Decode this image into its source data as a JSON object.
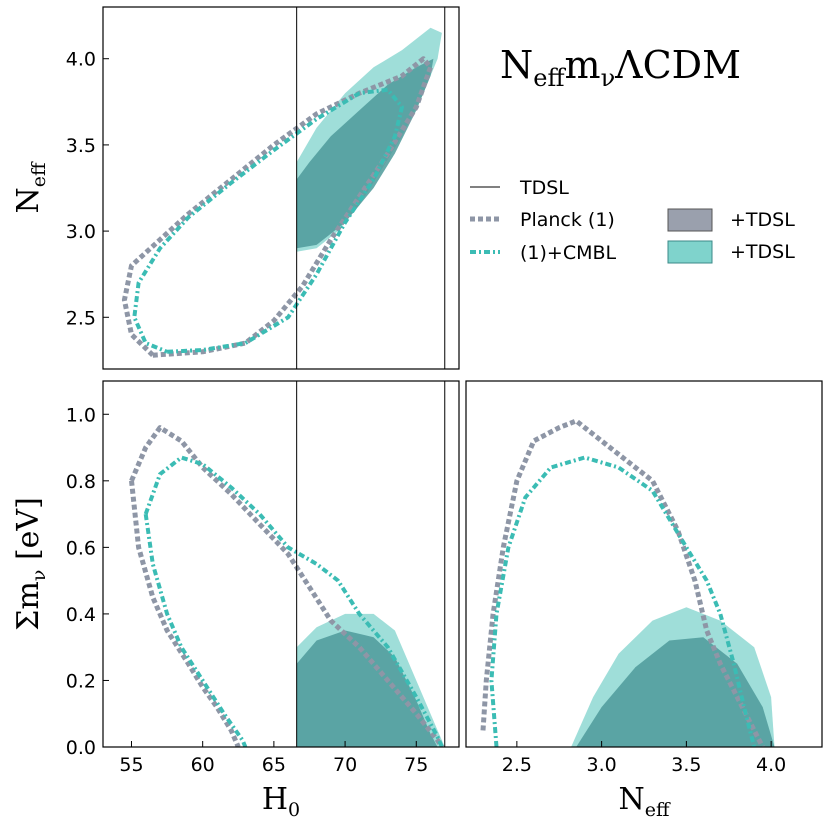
{
  "title": {
    "base": "N",
    "sub": "eff",
    "rest1": "m",
    "sub2": "ν",
    "rest2": "ΛCDM"
  },
  "colors": {
    "planck": "#8e96a6",
    "cmbl": "#3bbcb4",
    "fill_gray": "#9aa0ad",
    "fill_teal": "#7fd3cc",
    "fill_overlap": "#4d9a9a",
    "vline": "#000000"
  },
  "legend": {
    "tdsl_line": "TDSL",
    "planck": "Planck (1)",
    "cmbl": "(1)+CMBL",
    "fill_gray": "+TDSL",
    "fill_teal": "+TDSL"
  },
  "chart_data": [
    {
      "panel": "H0-Neff",
      "type": "scatter",
      "xlim": [
        53,
        78
      ],
      "ylim": [
        2.2,
        4.3
      ],
      "x_ticks": [],
      "y_ticks": [
        "2.5",
        "3.0",
        "3.5",
        "4.0"
      ],
      "ylabel": {
        "base": "N",
        "sub": "eff"
      },
      "xlabel": null,
      "vlines": [
        66.6,
        77.0
      ],
      "series": [
        {
          "name": "Planck (1)",
          "style": "dashed",
          "points": [
            [
              56.5,
              2.28
            ],
            [
              60,
              2.3
            ],
            [
              63,
              2.35
            ],
            [
              65,
              2.48
            ],
            [
              67,
              2.68
            ],
            [
              69,
              2.95
            ],
            [
              71,
              3.2
            ],
            [
              73,
              3.45
            ],
            [
              75,
              3.72
            ],
            [
              76,
              3.95
            ],
            [
              75.5,
              4.0
            ],
            [
              74,
              3.9
            ],
            [
              71,
              3.8
            ],
            [
              68,
              3.68
            ],
            [
              65,
              3.5
            ],
            [
              62,
              3.3
            ],
            [
              59,
              3.1
            ],
            [
              57,
              2.95
            ],
            [
              55,
              2.8
            ],
            [
              54.5,
              2.6
            ],
            [
              55,
              2.4
            ],
            [
              56.5,
              2.28
            ]
          ]
        },
        {
          "name": "(1)+CMBL",
          "style": "dashdot",
          "points": [
            [
              57.5,
              2.3
            ],
            [
              60,
              2.31
            ],
            [
              63,
              2.35
            ],
            [
              66,
              2.5
            ],
            [
              68,
              2.75
            ],
            [
              70,
              3.05
            ],
            [
              72,
              3.3
            ],
            [
              73.5,
              3.55
            ],
            [
              74,
              3.72
            ],
            [
              73,
              3.82
            ],
            [
              71,
              3.8
            ],
            [
              68,
              3.65
            ],
            [
              65,
              3.47
            ],
            [
              62,
              3.28
            ],
            [
              59,
              3.08
            ],
            [
              57,
              2.9
            ],
            [
              55.5,
              2.7
            ],
            [
              55.2,
              2.5
            ],
            [
              56,
              2.35
            ],
            [
              57.5,
              2.3
            ]
          ]
        }
      ],
      "fills": [
        {
          "name": "+TDSL",
          "color": "teal",
          "points": [
            [
              66.6,
              2.88
            ],
            [
              68,
              2.9
            ],
            [
              69.5,
              3.0
            ],
            [
              71,
              3.15
            ],
            [
              72.5,
              3.35
            ],
            [
              74,
              3.55
            ],
            [
              75.5,
              3.8
            ],
            [
              76.5,
              4.0
            ],
            [
              76.8,
              4.15
            ],
            [
              76,
              4.18
            ],
            [
              74,
              4.05
            ],
            [
              72,
              3.95
            ],
            [
              70,
              3.8
            ],
            [
              68,
              3.6
            ],
            [
              66.6,
              3.4
            ]
          ]
        },
        {
          "name": "+TDSL",
          "color": "overlap",
          "points": [
            [
              66.6,
              2.9
            ],
            [
              68,
              2.92
            ],
            [
              70,
              3.05
            ],
            [
              72,
              3.25
            ],
            [
              73.5,
              3.45
            ],
            [
              75,
              3.7
            ],
            [
              76,
              3.9
            ],
            [
              76.2,
              4.0
            ],
            [
              75,
              3.95
            ],
            [
              73,
              3.85
            ],
            [
              71,
              3.7
            ],
            [
              69,
              3.55
            ],
            [
              67.5,
              3.4
            ],
            [
              66.6,
              3.3
            ]
          ]
        }
      ]
    },
    {
      "panel": "H0-mnu",
      "type": "scatter",
      "xlim": [
        53,
        78
      ],
      "ylim": [
        0,
        1.1
      ],
      "x_ticks": [
        "55",
        "60",
        "65",
        "70",
        "75"
      ],
      "y_ticks": [
        "0.0",
        "0.2",
        "0.4",
        "0.6",
        "0.8",
        "1.0"
      ],
      "xlabel": {
        "base": "H",
        "sub": "0"
      },
      "ylabel": {
        "base": "Σm",
        "sub": "ν",
        "rest": " [eV]"
      },
      "vlines": [
        66.6,
        77.0
      ],
      "series": [
        {
          "name": "Planck (1)",
          "style": "dashed",
          "points": [
            [
              55,
              0.8
            ],
            [
              56,
              0.9
            ],
            [
              57,
              0.96
            ],
            [
              58.5,
              0.92
            ],
            [
              60,
              0.84
            ],
            [
              62,
              0.76
            ],
            [
              64,
              0.67
            ],
            [
              66,
              0.58
            ],
            [
              67.5,
              0.48
            ],
            [
              69,
              0.38
            ],
            [
              71,
              0.3
            ],
            [
              73,
              0.2
            ],
            [
              75,
              0.1
            ],
            [
              76.5,
              0.02
            ],
            [
              76.8,
              0.0
            ]
          ]
        },
        {
          "name": "Planck (1) lower",
          "style": "dashed",
          "points": [
            [
              55,
              0.8
            ],
            [
              55.5,
              0.6
            ],
            [
              56.5,
              0.45
            ],
            [
              57.5,
              0.35
            ],
            [
              59,
              0.25
            ],
            [
              60,
              0.18
            ],
            [
              61,
              0.12
            ],
            [
              62,
              0.05
            ],
            [
              62.5,
              0.0
            ]
          ]
        },
        {
          "name": "(1)+CMBL",
          "style": "dashdot",
          "points": [
            [
              56,
              0.7
            ],
            [
              57,
              0.82
            ],
            [
              58.5,
              0.87
            ],
            [
              60,
              0.85
            ],
            [
              62,
              0.78
            ],
            [
              64,
              0.7
            ],
            [
              66,
              0.6
            ],
            [
              68,
              0.55
            ],
            [
              69.5,
              0.5
            ],
            [
              71,
              0.4
            ],
            [
              73,
              0.3
            ],
            [
              75,
              0.15
            ],
            [
              76.5,
              0.03
            ],
            [
              76.8,
              0.0
            ]
          ]
        },
        {
          "name": "(1)+CMBL lower",
          "style": "dashdot",
          "points": [
            [
              56,
              0.7
            ],
            [
              56.5,
              0.55
            ],
            [
              57.5,
              0.4
            ],
            [
              58.5,
              0.3
            ],
            [
              60,
              0.2
            ],
            [
              61.5,
              0.1
            ],
            [
              62.8,
              0.02
            ],
            [
              63,
              0.0
            ]
          ]
        }
      ],
      "fills": [
        {
          "name": "+TDSL",
          "color": "teal",
          "points": [
            [
              66.6,
              0.0
            ],
            [
              66.6,
              0.3
            ],
            [
              68,
              0.36
            ],
            [
              70,
              0.4
            ],
            [
              72,
              0.4
            ],
            [
              73.5,
              0.35
            ],
            [
              75,
              0.2
            ],
            [
              76.5,
              0.05
            ],
            [
              77,
              0.0
            ]
          ]
        },
        {
          "name": "+TDSL",
          "color": "overlap",
          "points": [
            [
              66.6,
              0.0
            ],
            [
              66.6,
              0.25
            ],
            [
              68,
              0.32
            ],
            [
              70,
              0.35
            ],
            [
              72,
              0.33
            ],
            [
              73.5,
              0.27
            ],
            [
              75,
              0.14
            ],
            [
              76,
              0.04
            ],
            [
              76.5,
              0.0
            ]
          ]
        }
      ]
    },
    {
      "panel": "Neff-mnu",
      "type": "scatter",
      "xlim": [
        2.2,
        4.3
      ],
      "ylim": [
        0,
        1.1
      ],
      "x_ticks": [
        "2.5",
        "3.0",
        "3.5",
        "4.0"
      ],
      "y_ticks": [],
      "xlabel": {
        "base": "N",
        "sub": "eff"
      },
      "ylabel": null,
      "vlines": [],
      "series": [
        {
          "name": "Planck (1)",
          "style": "dashed",
          "points": [
            [
              2.3,
              0.05
            ],
            [
              2.32,
              0.2
            ],
            [
              2.36,
              0.4
            ],
            [
              2.42,
              0.6
            ],
            [
              2.5,
              0.8
            ],
            [
              2.6,
              0.92
            ],
            [
              2.75,
              0.96
            ],
            [
              2.85,
              0.98
            ],
            [
              3.0,
              0.92
            ],
            [
              3.15,
              0.86
            ],
            [
              3.3,
              0.8
            ],
            [
              3.45,
              0.65
            ],
            [
              3.55,
              0.5
            ],
            [
              3.62,
              0.35
            ],
            [
              3.7,
              0.25
            ],
            [
              3.8,
              0.15
            ],
            [
              3.9,
              0.05
            ],
            [
              3.95,
              0.0
            ]
          ]
        },
        {
          "name": "(1)+CMBL",
          "style": "dashdot",
          "points": [
            [
              2.38,
              0.0
            ],
            [
              2.35,
              0.2
            ],
            [
              2.38,
              0.4
            ],
            [
              2.45,
              0.6
            ],
            [
              2.55,
              0.75
            ],
            [
              2.7,
              0.84
            ],
            [
              2.9,
              0.87
            ],
            [
              3.1,
              0.84
            ],
            [
              3.3,
              0.77
            ],
            [
              3.5,
              0.6
            ],
            [
              3.62,
              0.5
            ],
            [
              3.7,
              0.4
            ],
            [
              3.78,
              0.25
            ],
            [
              3.85,
              0.1
            ],
            [
              3.9,
              0.0
            ]
          ]
        }
      ],
      "fills": [
        {
          "name": "+TDSL",
          "color": "teal",
          "points": [
            [
              2.82,
              0.0
            ],
            [
              2.95,
              0.15
            ],
            [
              3.1,
              0.28
            ],
            [
              3.3,
              0.38
            ],
            [
              3.5,
              0.42
            ],
            [
              3.7,
              0.38
            ],
            [
              3.9,
              0.3
            ],
            [
              4.0,
              0.15
            ],
            [
              4.02,
              0.0
            ]
          ]
        },
        {
          "name": "+TDSL",
          "color": "overlap",
          "points": [
            [
              2.85,
              0.0
            ],
            [
              3.0,
              0.12
            ],
            [
              3.2,
              0.24
            ],
            [
              3.4,
              0.32
            ],
            [
              3.6,
              0.33
            ],
            [
              3.8,
              0.25
            ],
            [
              3.95,
              0.12
            ],
            [
              4.02,
              0.0
            ]
          ]
        }
      ]
    }
  ]
}
